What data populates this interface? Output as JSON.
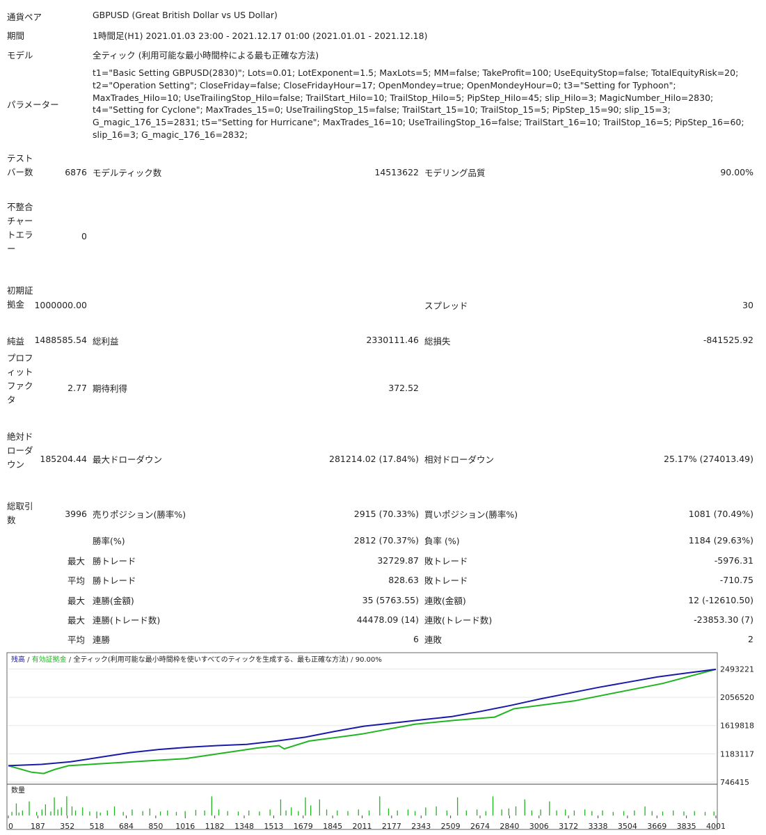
{
  "header": {
    "pair_label": "通貨ペア",
    "pair_value": "GBPUSD (Great British Dollar vs US Dollar)",
    "period_label": "期間",
    "period_value": "1時間足(H1) 2021.01.03 23:00 - 2021.12.17 01:00 (2021.01.01 - 2021.12.18)",
    "model_label": "モデル",
    "model_value": "全ティック (利用可能な最小時間枠による最も正確な方法)",
    "params_label": "パラメーター",
    "params_lines": [
      "t1=\"Basic Setting GBPUSD(2830)\"; Lots=0.01; LotExponent=1.5; MaxLots=5; MM=false; TakeProfit=100; UseEquityStop=false; TotalEquityRisk=20;",
      "t2=\"Operation Setting\"; CloseFriday=false; CloseFridayHour=17; OpenMondey=true; OpenMondeyHour=0; t3=\"Setting for Typhoon\";",
      "MaxTrades_Hilo=10; UseTrailingStop_Hilo=false; TrailStart_Hilo=10; TrailStop_Hilo=5; PipStep_Hilo=45; slip_Hilo=3; MagicNumber_Hilo=2830;",
      "t4=\"Setting for Cyclone\"; MaxTrades_15=0; UseTrailingStop_15=false; TrailStart_15=10; TrailStop_15=5; PipStep_15=90; slip_15=3;",
      "G_magic_176_15=2831; t5=\"Setting for Hurricane\"; MaxTrades_16=10; UseTrailingStop_16=false; TrailStart_16=10; TrailStop_16=5; PipStep_16=60;",
      "slip_16=3; G_magic_176_16=2832;"
    ]
  },
  "stats": {
    "test_bars_label": "テストバー数",
    "test_bars": "6876",
    "model_ticks_label": "モデルティック数",
    "model_ticks": "14513622",
    "model_quality_label": "モデリング品質",
    "model_quality": "90.00%",
    "mismatch_label": "不整合チャートエラー",
    "mismatch": "0",
    "initial_deposit_label": "初期証拠金",
    "initial_deposit": "1000000.00",
    "spread_label": "スプレッド",
    "spread": "30",
    "net_profit_label": "純益",
    "net_profit": "1488585.54",
    "gross_profit_label": "総利益",
    "gross_profit": "2330111.46",
    "gross_loss_label": "総損失",
    "gross_loss": "-841525.92",
    "profit_factor_label": "プロフィットファクタ",
    "profit_factor": "2.77",
    "expected_payoff_label": "期待利得",
    "expected_payoff": "372.52",
    "abs_dd_label": "絶対ドローダウン",
    "abs_dd": "185204.44",
    "max_dd_label": "最大ドローダウン",
    "max_dd": "281214.02 (17.84%)",
    "rel_dd_label": "相対ドローダウン",
    "rel_dd": "25.17% (274013.49)",
    "total_trades_label": "総取引数",
    "total_trades": "3996",
    "short_label": "売りポジション(勝率%)",
    "short": "2915 (70.33%)",
    "long_label": "買いポジション(勝率%)",
    "long": "1081 (70.49%)",
    "winrate_label": "勝率(%)",
    "winrate": "2812 (70.37%)",
    "lossrate_label": "負率 (%)",
    "lossrate": "1184 (29.63%)",
    "max_label": "最大",
    "avg_label": "平均",
    "win_trade_label": "勝トレード",
    "loss_trade_label": "敗トレード",
    "max_win_trade": "32729.87",
    "max_loss_trade": "-5976.31",
    "avg_win_trade": "828.63",
    "avg_loss_trade": "-710.75",
    "cons_wins_money_label": "連勝(金額)",
    "cons_wins_money": "35 (5763.55)",
    "cons_losses_money_label": "連敗(金額)",
    "cons_losses_money": "12 (-12610.50)",
    "cons_wins_count_label": "連勝(トレード数)",
    "cons_wins_count": "44478.09 (14)",
    "cons_losses_count_label": "連敗(トレード数)",
    "cons_losses_count": "-23853.30 (7)",
    "avg_cons_wins_label": "連勝",
    "avg_cons_wins": "6",
    "avg_cons_losses_label": "連敗",
    "avg_cons_losses": "2"
  },
  "colors": {
    "balance": "#1a1aa8",
    "equity": "#1fb51f",
    "volume": "#1fb51f"
  },
  "chart_data": {
    "type": "line",
    "legend": {
      "balance": "残高",
      "sep1": " / ",
      "equity": "有効証拠金",
      "sep2": " / ",
      "model": "全ティック(利用可能な最小時間枠を使いすべてのティックを生成する、最も正確な方法)",
      "sep3": " / ",
      "quality": "90.00%"
    },
    "volume_label": "数量",
    "yticks": [
      "2493221",
      "2056520",
      "1619818",
      "1183117",
      "746415"
    ],
    "ytick_values": [
      2493221,
      2056520,
      1619818,
      1183117,
      746415
    ],
    "xticks": [
      "0",
      "187",
      "352",
      "518",
      "684",
      "850",
      "1016",
      "1182",
      "1348",
      "1513",
      "1679",
      "1845",
      "2011",
      "2177",
      "2343",
      "2509",
      "2674",
      "2840",
      "3006",
      "3172",
      "3338",
      "3504",
      "3669",
      "3835",
      "4001"
    ],
    "ylim": [
      746415,
      2530000
    ],
    "xlim": [
      0,
      4001
    ],
    "series": [
      {
        "name": "残高",
        "x": [
          0,
          187,
          352,
          518,
          684,
          850,
          1016,
          1182,
          1348,
          1513,
          1679,
          1845,
          2011,
          2177,
          2343,
          2509,
          2674,
          2840,
          3006,
          3172,
          3338,
          3504,
          3669,
          3835,
          4001
        ],
        "values": [
          1000000,
          1020000,
          1060000,
          1130000,
          1200000,
          1250000,
          1285000,
          1310000,
          1330000,
          1380000,
          1440000,
          1530000,
          1610000,
          1660000,
          1710000,
          1760000,
          1840000,
          1930000,
          2030000,
          2120000,
          2210000,
          2290000,
          2370000,
          2430000,
          2488585
        ]
      },
      {
        "name": "有効証拠金",
        "x": [
          0,
          130,
          200,
          260,
          340,
          1000,
          1400,
          1530,
          1560,
          1700,
          2000,
          2300,
          2520,
          2750,
          2860,
          3200,
          3700,
          4001
        ],
        "values": [
          1000000,
          900000,
          880000,
          940000,
          1000000,
          1110000,
          1270000,
          1310000,
          1260000,
          1380000,
          1490000,
          1640000,
          1700000,
          1750000,
          1880000,
          2000000,
          2270000,
          2488585
        ]
      }
    ],
    "volume": [
      [
        20,
        18
      ],
      [
        45,
        60
      ],
      [
        60,
        15
      ],
      [
        80,
        25
      ],
      [
        118,
        70
      ],
      [
        160,
        18
      ],
      [
        190,
        30
      ],
      [
        210,
        55
      ],
      [
        240,
        20
      ],
      [
        260,
        90
      ],
      [
        280,
        30
      ],
      [
        300,
        40
      ],
      [
        330,
        95
      ],
      [
        360,
        45
      ],
      [
        380,
        25
      ],
      [
        420,
        40
      ],
      [
        460,
        20
      ],
      [
        500,
        20
      ],
      [
        520,
        15
      ],
      [
        560,
        25
      ],
      [
        600,
        45
      ],
      [
        650,
        18
      ],
      [
        700,
        30
      ],
      [
        760,
        22
      ],
      [
        800,
        35
      ],
      [
        860,
        20
      ],
      [
        900,
        25
      ],
      [
        950,
        18
      ],
      [
        1000,
        22
      ],
      [
        1060,
        28
      ],
      [
        1110,
        25
      ],
      [
        1150,
        95
      ],
      [
        1190,
        30
      ],
      [
        1240,
        22
      ],
      [
        1300,
        20
      ],
      [
        1360,
        25
      ],
      [
        1420,
        20
      ],
      [
        1480,
        30
      ],
      [
        1540,
        80
      ],
      [
        1570,
        25
      ],
      [
        1600,
        40
      ],
      [
        1640,
        22
      ],
      [
        1680,
        90
      ],
      [
        1710,
        50
      ],
      [
        1760,
        80
      ],
      [
        1800,
        30
      ],
      [
        1860,
        25
      ],
      [
        1920,
        22
      ],
      [
        1980,
        30
      ],
      [
        2040,
        25
      ],
      [
        2100,
        95
      ],
      [
        2150,
        35
      ],
      [
        2200,
        25
      ],
      [
        2260,
        30
      ],
      [
        2300,
        22
      ],
      [
        2360,
        40
      ],
      [
        2420,
        45
      ],
      [
        2480,
        25
      ],
      [
        2540,
        90
      ],
      [
        2590,
        25
      ],
      [
        2650,
        30
      ],
      [
        2700,
        22
      ],
      [
        2740,
        95
      ],
      [
        2790,
        30
      ],
      [
        2830,
        35
      ],
      [
        2870,
        45
      ],
      [
        2920,
        80
      ],
      [
        2960,
        25
      ],
      [
        3010,
        30
      ],
      [
        3060,
        70
      ],
      [
        3100,
        25
      ],
      [
        3150,
        30
      ],
      [
        3200,
        25
      ],
      [
        3260,
        30
      ],
      [
        3300,
        22
      ],
      [
        3360,
        25
      ],
      [
        3420,
        18
      ],
      [
        3480,
        22
      ],
      [
        3540,
        25
      ],
      [
        3600,
        45
      ],
      [
        3640,
        22
      ],
      [
        3700,
        20
      ],
      [
        3760,
        25
      ],
      [
        3820,
        20
      ],
      [
        3880,
        22
      ],
      [
        3940,
        18
      ],
      [
        3990,
        20
      ]
    ]
  }
}
